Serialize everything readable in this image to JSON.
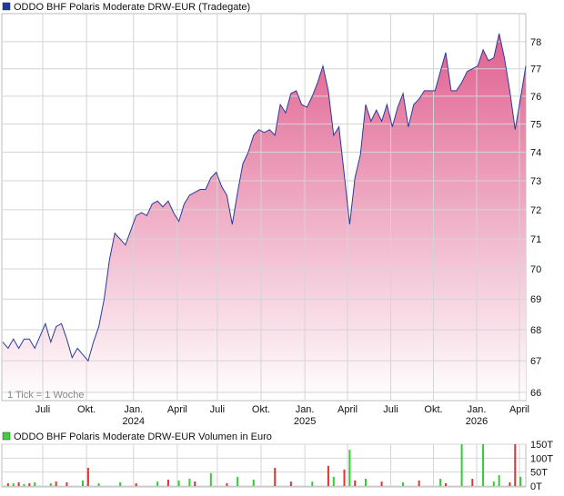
{
  "chart_data": [
    {
      "type": "area",
      "title": "ODDO BHF Polaris Moderate DRW-EUR (Tradegate)",
      "note": "1 Tick = 1 Woche",
      "series": [
        {
          "color": "#2a3a9a",
          "values": [
            67.6,
            67.4,
            67.7,
            67.4,
            67.7,
            67.7,
            67.4,
            67.8,
            68.2,
            67.6,
            68.1,
            68.2,
            67.7,
            67.1,
            67.4,
            67.2,
            67.0,
            67.6,
            68.1,
            69.0,
            70.3,
            71.2,
            71.0,
            70.8,
            71.3,
            71.8,
            71.9,
            71.8,
            72.2,
            72.3,
            72.1,
            72.3,
            71.9,
            71.6,
            72.2,
            72.5,
            72.6,
            72.7,
            72.7,
            73.1,
            73.3,
            72.8,
            72.5,
            71.5,
            72.6,
            73.6,
            74.0,
            74.6,
            74.8,
            74.7,
            74.8,
            74.6,
            75.7,
            75.4,
            76.1,
            76.2,
            75.7,
            75.6,
            76.0,
            76.5,
            77.1,
            76.2,
            74.6,
            74.9,
            73.2,
            71.5,
            73.1,
            73.9,
            75.7,
            75.1,
            75.5,
            75.1,
            75.7,
            74.9,
            75.6,
            76.1,
            74.9,
            75.7,
            75.9,
            76.2,
            76.2,
            76.2,
            76.9,
            77.6,
            76.2,
            76.2,
            76.5,
            76.9,
            77.0,
            77.1,
            77.7,
            77.3,
            77.4,
            78.3,
            77.4,
            76.2,
            74.8,
            75.9,
            77.1
          ]
        }
      ],
      "xlim": [
        0,
        98
      ],
      "xticks": [
        {
          "value": 7.5,
          "label": "Juli"
        },
        {
          "value": 15.7,
          "label": "Okt."
        },
        {
          "value": 24.5,
          "label": "Jan."
        },
        {
          "value": 32.7,
          "label": "April"
        },
        {
          "value": 40.2,
          "label": "Juli"
        },
        {
          "value": 48.4,
          "label": "Okt."
        },
        {
          "value": 56.6,
          "label": "Jan."
        },
        {
          "value": 64.6,
          "label": "April"
        },
        {
          "value": 72.7,
          "label": "Juli"
        },
        {
          "value": 80.7,
          "label": "Okt."
        },
        {
          "value": 88.8,
          "label": "Jan."
        },
        {
          "value": 96.8,
          "label": "April"
        }
      ],
      "x_year_labels": [
        {
          "value": 24.5,
          "label": "2024"
        },
        {
          "value": 56.6,
          "label": "2025"
        },
        {
          "value": 88.8,
          "label": "2026"
        }
      ],
      "ylim": [
        65.77,
        79.05
      ],
      "log_scale": true,
      "grid": true,
      "yticks": [
        66,
        67,
        68,
        69,
        70,
        71,
        72,
        73,
        74,
        75,
        76,
        77,
        78
      ]
    },
    {
      "type": "bar",
      "title": "ODDO BHF Polaris Moderate DRW-EUR Volumen in Euro",
      "xlim": [
        0,
        98
      ],
      "series": [
        {
          "color": "#33cc33",
          "x": [
            2,
            4,
            6,
            9,
            15,
            18,
            22,
            29,
            33,
            35,
            39,
            44,
            47,
            58,
            62,
            65,
            68,
            75,
            82,
            86,
            90,
            92,
            93,
            97
          ],
          "values": [
            10,
            7,
            13,
            10,
            20,
            10,
            13,
            16,
            20,
            26,
            46,
            33,
            23,
            16,
            33,
            130,
            26,
            13,
            26,
            150,
            150,
            16,
            39,
            33
          ]
        },
        {
          "color": "#dd3333",
          "x": [
            1,
            3,
            5,
            10,
            12,
            16,
            25,
            31,
            36,
            42,
            51,
            54,
            61,
            64,
            66,
            71,
            78,
            83,
            88,
            95,
            96
          ],
          "values": [
            10,
            13,
            10,
            16,
            13,
            65,
            10,
            23,
            16,
            10,
            65,
            16,
            72,
            59,
            20,
            16,
            20,
            10,
            26,
            13,
            150
          ]
        }
      ],
      "ylim": [
        0,
        150
      ],
      "yticks": [
        {
          "value": 0,
          "label": "0T"
        },
        {
          "value": 50,
          "label": "50T"
        },
        {
          "value": 100,
          "label": "100T"
        },
        {
          "value": 150,
          "label": "150T"
        }
      ]
    }
  ]
}
